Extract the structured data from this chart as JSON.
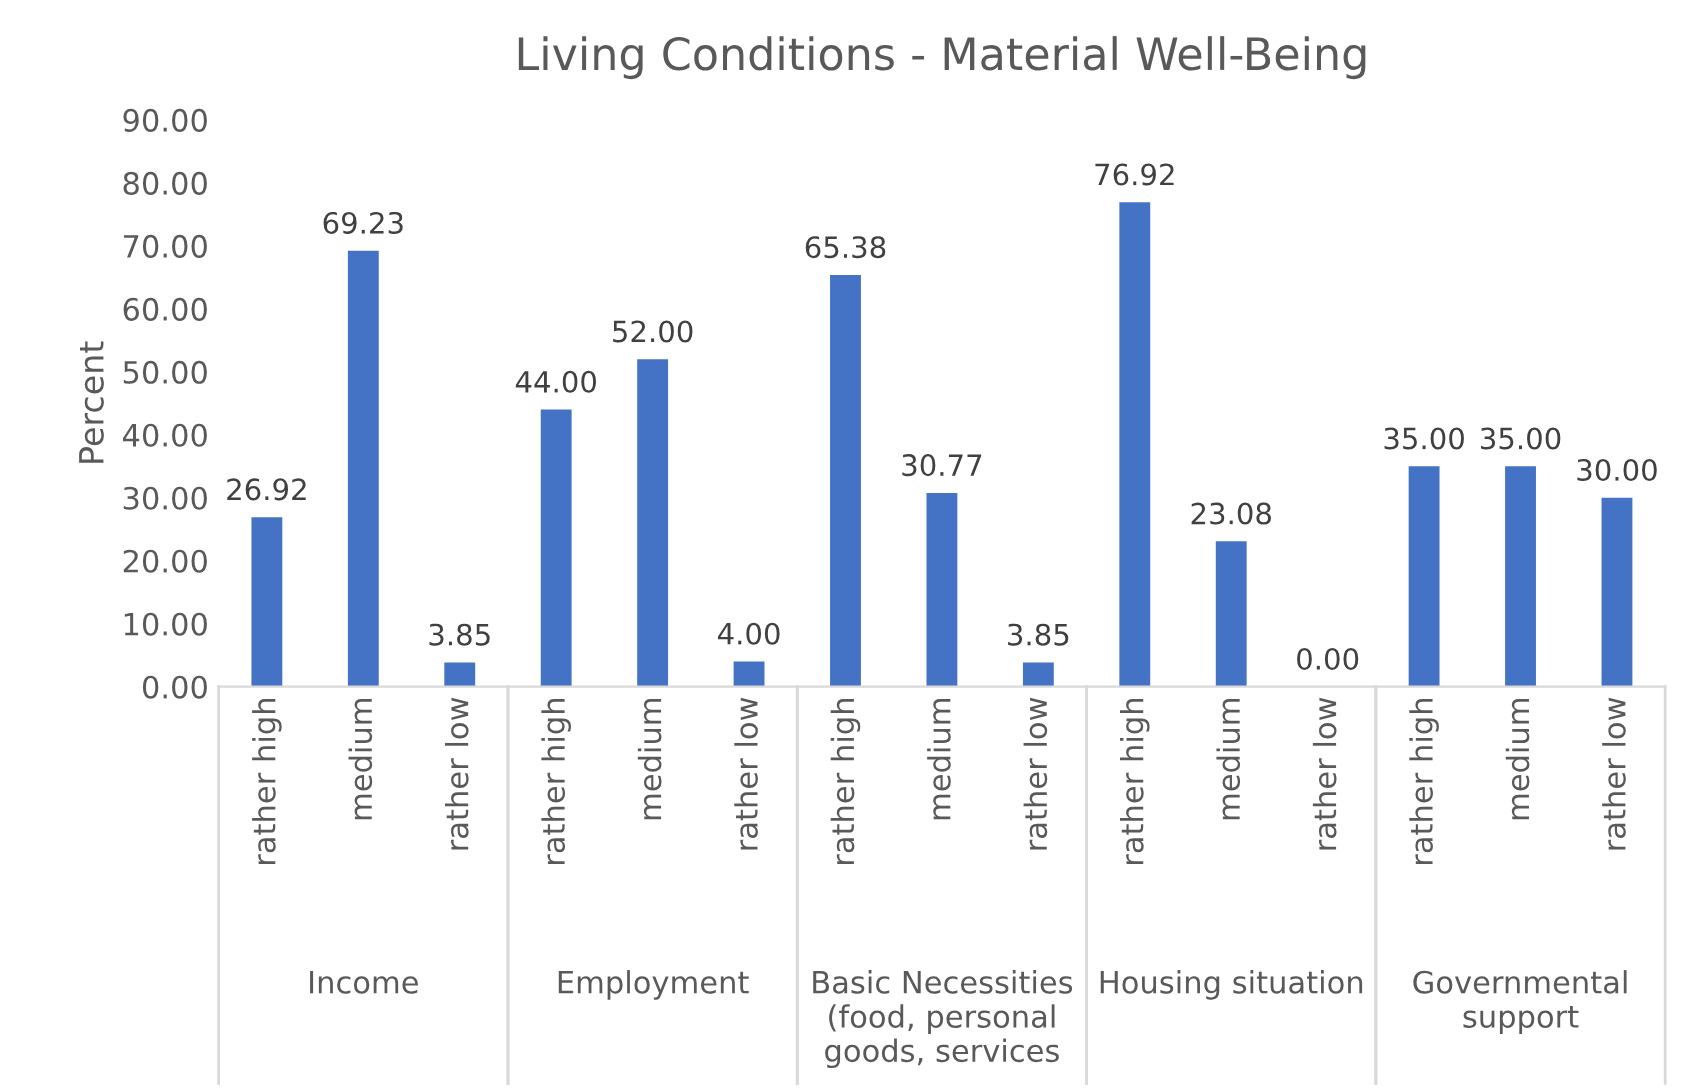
{
  "chart_data": {
    "type": "bar",
    "title": "Living Conditions - Material Well-Being",
    "ylabel": "Percent",
    "categories": [
      "rather high",
      "medium",
      "rather low",
      "rather high",
      "medium",
      "rather low",
      "rather high",
      "medium",
      "rather low",
      "rather high",
      "medium",
      "rather low",
      "rather high",
      "medium",
      "rather low"
    ],
    "values": [
      26.92,
      69.23,
      3.85,
      44.0,
      52.0,
      4.0,
      65.38,
      30.77,
      3.85,
      76.92,
      23.08,
      0.0,
      35.0,
      35.0,
      30.0
    ],
    "value_labels": [
      "26.92",
      "69.23",
      "3.85",
      "44.00",
      "52.00",
      "4.00",
      "65.38",
      "30.77",
      "3.85",
      "76.92",
      "23.08",
      "0.00",
      "35.00",
      "35.00",
      "30.00"
    ],
    "color": "#4472c4",
    "annotations": [
      "Income",
      "Employment",
      "Basic Necessities (food, personal goods, services",
      "Housing situation",
      "Governmental support"
    ],
    "ylim": [
      0,
      90
    ],
    "yticks": [
      {
        "value": 0,
        "label": "0.00"
      },
      {
        "value": 10,
        "label": "10.00"
      },
      {
        "value": 20,
        "label": "20.00"
      },
      {
        "value": 30,
        "label": "30.00"
      },
      {
        "value": 40,
        "label": "40.00"
      },
      {
        "value": 50,
        "label": "50.00"
      },
      {
        "value": 60,
        "label": "60.00"
      },
      {
        "value": 70,
        "label": "70.00"
      },
      {
        "value": 80,
        "label": "80.00"
      },
      {
        "value": 90,
        "label": "90.00"
      }
    ],
    "grid": false,
    "legend": false
  }
}
